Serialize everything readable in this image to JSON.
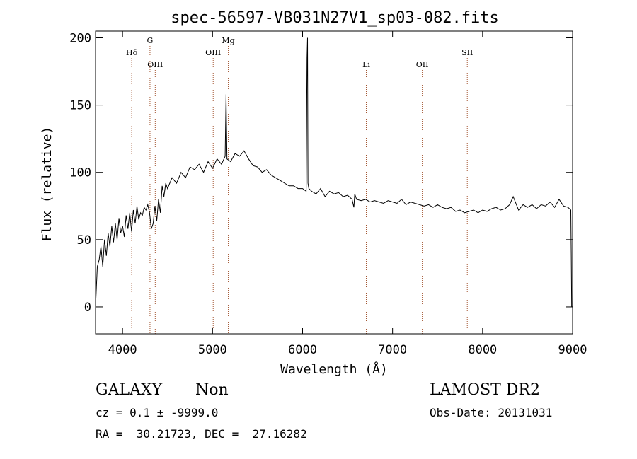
{
  "chart_data": {
    "type": "line",
    "title": "spec-56597-VB031N27V1_sp03-082.fits",
    "xlabel": "Wavelength (Å)",
    "ylabel": "Flux (relative)",
    "xlim": [
      3700,
      9000
    ],
    "ylim": [
      -20,
      205
    ],
    "xticks": [
      4000,
      5000,
      6000,
      7000,
      8000,
      9000
    ],
    "yticks": [
      0,
      50,
      100,
      150,
      200
    ],
    "grid": false,
    "series": [
      {
        "x": [
          3700,
          3720,
          3740,
          3760,
          3780,
          3800,
          3820,
          3840,
          3860,
          3880,
          3900,
          3920,
          3940,
          3960,
          3980,
          4000,
          4020,
          4040,
          4060,
          4080,
          4100,
          4120,
          4140,
          4160,
          4180,
          4200,
          4220,
          4240,
          4260,
          4280,
          4300,
          4320,
          4340,
          4360,
          4380,
          4400,
          4420,
          4440,
          4460,
          4480,
          4500,
          4550,
          4600,
          4650,
          4700,
          4750,
          4800,
          4850,
          4900,
          4950,
          5000,
          5050,
          5100,
          5140,
          5150,
          5160,
          5200,
          5250,
          5300,
          5350,
          5400,
          5450,
          5500,
          5550,
          5600,
          5650,
          5700,
          5750,
          5800,
          5850,
          5900,
          5950,
          6000,
          6040,
          6050,
          6055,
          6060,
          6070,
          6100,
          6150,
          6200,
          6250,
          6300,
          6350,
          6400,
          6450,
          6500,
          6550,
          6570,
          6580,
          6600,
          6650,
          6700,
          6750,
          6800,
          6850,
          6900,
          6950,
          7000,
          7050,
          7100,
          7150,
          7200,
          7250,
          7300,
          7350,
          7400,
          7450,
          7500,
          7550,
          7600,
          7650,
          7700,
          7750,
          7800,
          7850,
          7900,
          7950,
          8000,
          8050,
          8100,
          8150,
          8200,
          8250,
          8300,
          8340,
          8400,
          8450,
          8500,
          8550,
          8600,
          8650,
          8700,
          8750,
          8800,
          8850,
          8900,
          8950,
          8980,
          8985,
          8990
        ],
        "y": [
          0,
          30,
          35,
          45,
          30,
          50,
          38,
          55,
          45,
          60,
          48,
          62,
          50,
          66,
          55,
          60,
          52,
          68,
          58,
          70,
          56,
          72,
          62,
          75,
          65,
          70,
          68,
          74,
          72,
          76,
          70,
          58,
          62,
          75,
          64,
          80,
          70,
          90,
          82,
          92,
          88,
          96,
          92,
          100,
          96,
          104,
          102,
          106,
          100,
          108,
          103,
          110,
          106,
          112,
          158,
          110,
          108,
          114,
          112,
          116,
          110,
          105,
          104,
          100,
          102,
          98,
          96,
          94,
          92,
          90,
          90,
          88,
          88,
          86,
          185,
          200,
          92,
          88,
          86,
          84,
          88,
          82,
          86,
          84,
          85,
          82,
          83,
          80,
          74,
          84,
          80,
          79,
          80,
          78,
          79,
          78,
          77,
          79,
          78,
          77,
          80,
          76,
          78,
          77,
          76,
          75,
          76,
          74,
          76,
          74,
          73,
          74,
          71,
          72,
          70,
          71,
          72,
          70,
          72,
          71,
          73,
          74,
          72,
          73,
          76,
          82,
          72,
          76,
          74,
          76,
          73,
          76,
          75,
          78,
          74,
          80,
          75,
          74,
          72,
          40,
          0
        ]
      }
    ],
    "line_markers": [
      {
        "label": "Hδ",
        "x": 4102,
        "row": 0
      },
      {
        "label": "G",
        "x": 4305,
        "row": 1
      },
      {
        "label": "OIII",
        "x": 4363,
        "row": 2
      },
      {
        "label": "OIII",
        "x": 5007,
        "row": 0
      },
      {
        "label": "Mg",
        "x": 5175,
        "row": 1
      },
      {
        "label": "Li",
        "x": 6708,
        "row": 2
      },
      {
        "label": "OII",
        "x": 7330,
        "row": 2
      },
      {
        "label": "SII",
        "x": 7830,
        "row": 0
      }
    ]
  },
  "info": {
    "object_type": "GALAXY",
    "subclass": "Non",
    "survey": "LAMOST DR2",
    "cz": "cz = 0.1 ± -9999.0",
    "obs_date": "Obs-Date: 20131031",
    "coords": "RA =  30.21723, DEC =  27.16282"
  }
}
